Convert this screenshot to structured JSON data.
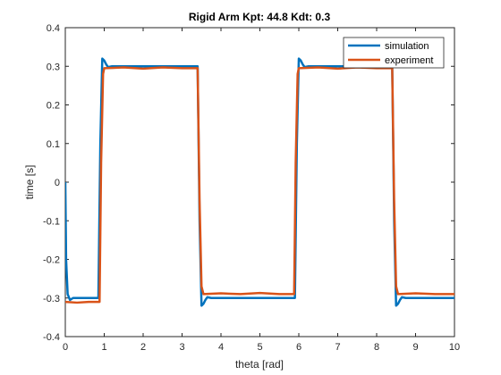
{
  "chart_data": {
    "type": "line",
    "title": "Rigid Arm Kpt: 44.8  Kdt: 0.3",
    "xlabel": "theta [rad]",
    "ylabel": "time [s]",
    "xlim": [
      0,
      10
    ],
    "ylim": [
      -0.4,
      0.4
    ],
    "xticks": [
      0,
      1,
      2,
      3,
      4,
      5,
      6,
      7,
      8,
      9,
      10
    ],
    "yticks": [
      -0.4,
      -0.3,
      -0.2,
      -0.1,
      0,
      0.1,
      0.2,
      0.3,
      0.4
    ],
    "grid": false,
    "legend_position": "top-right",
    "series": [
      {
        "name": "simulation",
        "color": "#0072BD",
        "x": [
          0,
          0.02,
          0.06,
          0.12,
          0.2,
          0.85,
          0.9,
          0.95,
          1.0,
          1.05,
          1.1,
          1.2,
          1.3,
          3.4,
          3.45,
          3.5,
          3.55,
          3.6,
          3.65,
          3.75,
          3.85,
          5.9,
          5.95,
          6.0,
          6.05,
          6.1,
          6.15,
          6.25,
          6.35,
          8.4,
          8.45,
          8.5,
          8.55,
          8.6,
          8.65,
          8.75,
          8.85,
          10
        ],
        "y": [
          0,
          -0.2,
          -0.29,
          -0.305,
          -0.3,
          -0.3,
          0.1,
          0.32,
          0.315,
          0.305,
          0.298,
          0.3,
          0.3,
          0.3,
          -0.1,
          -0.32,
          -0.315,
          -0.305,
          -0.298,
          -0.3,
          -0.3,
          -0.3,
          0.1,
          0.32,
          0.315,
          0.305,
          0.298,
          0.3,
          0.3,
          0.3,
          -0.1,
          -0.32,
          -0.315,
          -0.305,
          -0.298,
          -0.3,
          -0.3,
          -0.3
        ]
      },
      {
        "name": "experiment",
        "color": "#D95319",
        "x": [
          0,
          0.3,
          0.6,
          0.88,
          0.92,
          0.97,
          1.0,
          1.5,
          2.0,
          2.5,
          3.0,
          3.4,
          3.45,
          3.5,
          3.55,
          4.0,
          4.5,
          5.0,
          5.5,
          5.88,
          5.92,
          5.97,
          6.0,
          6.5,
          7.0,
          7.5,
          8.0,
          8.4,
          8.45,
          8.5,
          8.55,
          9.0,
          9.5,
          10
        ],
        "y": [
          -0.31,
          -0.312,
          -0.31,
          -0.31,
          0.05,
          0.28,
          0.295,
          0.297,
          0.294,
          0.297,
          0.295,
          0.295,
          -0.05,
          -0.27,
          -0.29,
          -0.288,
          -0.29,
          -0.287,
          -0.29,
          -0.29,
          0.05,
          0.28,
          0.295,
          0.297,
          0.294,
          0.297,
          0.295,
          0.295,
          -0.05,
          -0.27,
          -0.29,
          -0.288,
          -0.29,
          -0.29
        ]
      }
    ]
  }
}
